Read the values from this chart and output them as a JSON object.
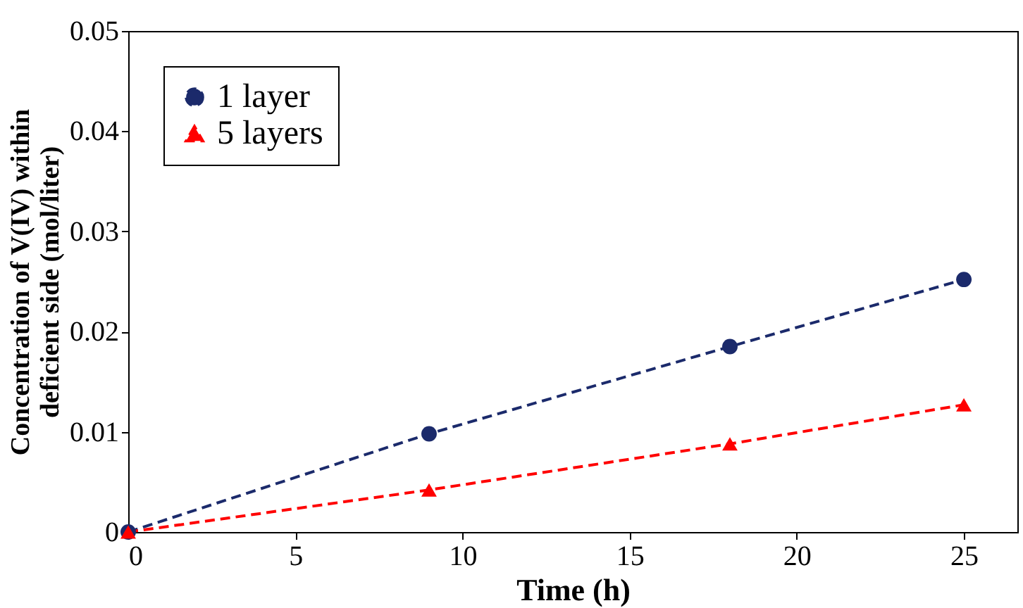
{
  "chart_data": {
    "type": "line",
    "xlabel": "Time (h)",
    "ylabel": "Concentration of V(IV) within deficient side (mol/liter)",
    "x": [
      0,
      9,
      18,
      25
    ],
    "series": [
      {
        "name": "1 layer",
        "color": "#1b2a6b",
        "marker": "circle",
        "values": [
          0,
          0.0098,
          0.0185,
          0.0252
        ]
      },
      {
        "name": "5 layers",
        "color": "#ff0000",
        "marker": "triangle",
        "values": [
          0,
          0.0042,
          0.0088,
          0.0127
        ]
      }
    ],
    "line_style": "dashed",
    "xlim": [
      0,
      26.6
    ],
    "xticks": [
      0,
      5,
      10,
      15,
      20,
      25
    ],
    "ylim": [
      0,
      0.05
    ],
    "yticks": [
      0,
      0.01,
      0.02,
      0.03,
      0.04,
      0.05
    ],
    "grid": false,
    "legend": "top left"
  }
}
